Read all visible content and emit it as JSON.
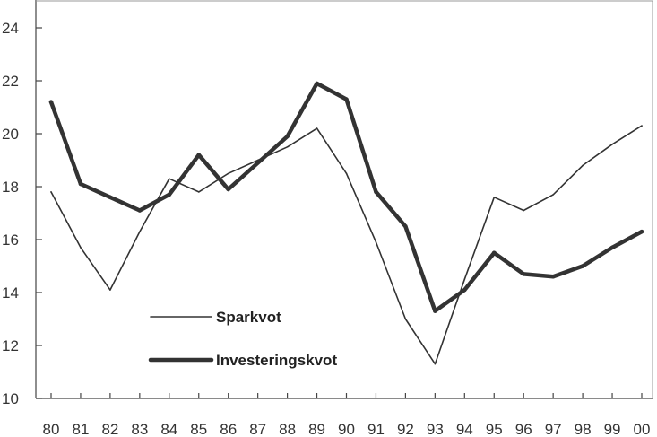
{
  "chart_data": {
    "type": "line",
    "title": "",
    "xlabel": "",
    "ylabel": "",
    "categories": [
      "80",
      "81",
      "82",
      "83",
      "84",
      "85",
      "86",
      "87",
      "88",
      "89",
      "90",
      "91",
      "92",
      "93",
      "94",
      "95",
      "96",
      "97",
      "98",
      "99",
      "00"
    ],
    "ylim": [
      10,
      24
    ],
    "yticks": [
      "10",
      "12",
      "14",
      "16",
      "18",
      "20",
      "22",
      "24"
    ],
    "grid": false,
    "legend_position": "lower-left",
    "series": [
      {
        "name": "Sparkvot",
        "style": "thin",
        "color": "#333333",
        "values": [
          17.8,
          15.7,
          14.1,
          16.3,
          18.3,
          17.8,
          18.5,
          19.0,
          19.5,
          20.2,
          18.5,
          15.9,
          13.0,
          11.3,
          14.5,
          17.6,
          17.1,
          17.7,
          18.8,
          19.6,
          20.3
        ]
      },
      {
        "name": "Investeringskvot",
        "style": "thick",
        "color": "#333333",
        "values": [
          21.2,
          18.1,
          17.6,
          17.1,
          17.7,
          19.2,
          17.9,
          18.9,
          19.9,
          21.9,
          21.3,
          17.8,
          16.5,
          13.3,
          14.1,
          15.5,
          14.7,
          14.6,
          15.0,
          15.7,
          16.3
        ]
      }
    ]
  }
}
